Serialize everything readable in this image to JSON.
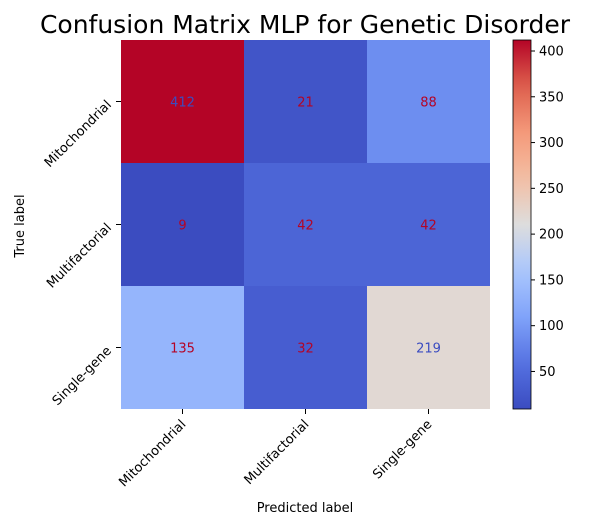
{
  "chart_data": {
    "type": "heatmap",
    "title": "Confusion Matrix MLP for Genetic Disorder",
    "xlabel": "Predicted label",
    "ylabel": "True label",
    "x_categories": [
      "Mitochondrial",
      "Multifactorial",
      "Single-gene"
    ],
    "y_categories": [
      "Mitochondrial",
      "Multifactorial",
      "Single-gene"
    ],
    "values": [
      [
        412,
        21,
        88
      ],
      [
        9,
        42,
        42
      ],
      [
        135,
        32,
        219
      ]
    ],
    "colormap": "coolwarm",
    "colorbar": {
      "range": [
        9,
        412
      ],
      "ticks": [
        50,
        100,
        150,
        200,
        250,
        300,
        350,
        400
      ]
    },
    "text_colors": {
      "on_light": "#3b4cc0",
      "on_dark": "#b40426"
    }
  }
}
